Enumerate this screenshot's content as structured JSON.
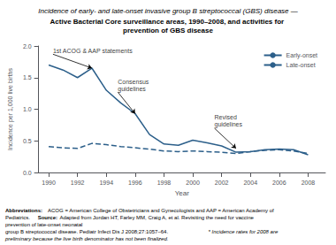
{
  "chart_data": {
    "type": "line",
    "title": "Incidence of early- and late-onset invasive group B streptococcal (GBS) disease —",
    "subtitle": "Active Bacterial Core surveillance areas, 1990–2008, and activities for prevention of GBS disease",
    "x_label": "Year",
    "y_label": "Incidence per 1,000 live births",
    "x": [
      1990,
      1991,
      1992,
      1993,
      1994,
      1995,
      1996,
      1997,
      1998,
      1999,
      2000,
      2001,
      2002,
      2003,
      2004,
      2005,
      2006,
      2007,
      2008
    ],
    "series": [
      {
        "name": "Early-onset",
        "color": "#2c5f8a",
        "line_style": "solid",
        "values": [
          1.7,
          1.62,
          1.5,
          1.65,
          1.3,
          1.1,
          0.93,
          0.6,
          0.45,
          0.43,
          0.51,
          0.47,
          0.42,
          0.32,
          0.33,
          0.36,
          0.37,
          0.36,
          0.28
        ]
      },
      {
        "name": "Late-onset",
        "color": "#2c5f8a",
        "line_style": "dashed",
        "values": [
          0.41,
          0.39,
          0.38,
          0.46,
          0.44,
          0.41,
          0.39,
          0.37,
          0.34,
          0.33,
          0.34,
          0.33,
          0.32,
          0.3,
          0.33,
          0.35,
          0.36,
          0.34,
          0.3
        ]
      }
    ],
    "xlim": [
      1989.3,
      2009.2
    ],
    "xticks": [
      1990,
      1992,
      1994,
      1996,
      1998,
      2000,
      2002,
      2004,
      2006,
      2008
    ],
    "ylim": [
      0.0,
      2.0
    ],
    "yticks": [
      {
        "value": 0.0,
        "label": "0.0"
      },
      0.5,
      {
        "value": 1.0,
        "label": "1.0"
      },
      1.5,
      {
        "value": 2.0,
        "label": "2.0"
      }
    ],
    "grid": false,
    "legend": "upper right",
    "annotations": [
      {
        "text": "1st ACOG & AAP statements",
        "x": 1993,
        "y": 1.65,
        "text_x": 1990.3,
        "text_y": 1.87
      },
      {
        "text": "Consensus\nguidelines",
        "x": 1996,
        "y": 0.93,
        "text_x": 1994.8,
        "text_y": 1.27
      },
      {
        "text": "Revised\nguidelines",
        "x": 2003,
        "y": 0.38,
        "text_x": 2001.5,
        "text_y": 0.7
      }
    ],
    "notes": [
      {
        "bold": "Abbreviations:",
        "text": " ACOG = American College of Obstetricians and Gynecologists and AAP = American Academy of Pediatrics."
      },
      {
        "bold": "Source:",
        "text": " Adapted from Jordan HT, Farley MM, Craig A, et al. Revisiting the need for vaccine prevention of late-onset neonatal\ngroup B streptococcal disease. Pediatr Infect Dis J 2008;27:1057–64."
      }
    ],
    "footnote": "* Incidence rates for 2008 are preliminary because the live birth denominator has not been finalized."
  }
}
